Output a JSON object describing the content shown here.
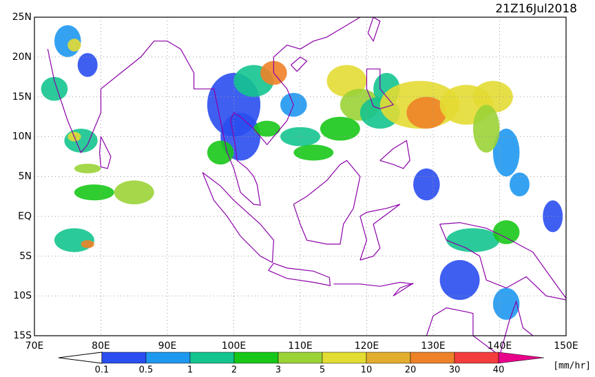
{
  "title": "21Z16Jul2018",
  "lat_labels": [
    "25N",
    "20N",
    "15N",
    "10N",
    "5N",
    "EQ",
    "5S",
    "10S",
    "15S"
  ],
  "lon_labels": [
    "70E",
    "80E",
    "90E",
    "100E",
    "110E",
    "120E",
    "130E",
    "140E",
    "150E"
  ],
  "colorbar": {
    "labels": [
      "0.1",
      "0.5",
      "1",
      "2",
      "3",
      "5",
      "10",
      "20",
      "30",
      "40"
    ],
    "colors": [
      "#ffffff",
      "#2a4ef0",
      "#1f98ef",
      "#14c48f",
      "#18c818",
      "#9ad336",
      "#e3dc33",
      "#e2ae2e",
      "#ee8228",
      "#f43d3d",
      "#e8008a"
    ],
    "unit": "[mm/hr]"
  }
}
